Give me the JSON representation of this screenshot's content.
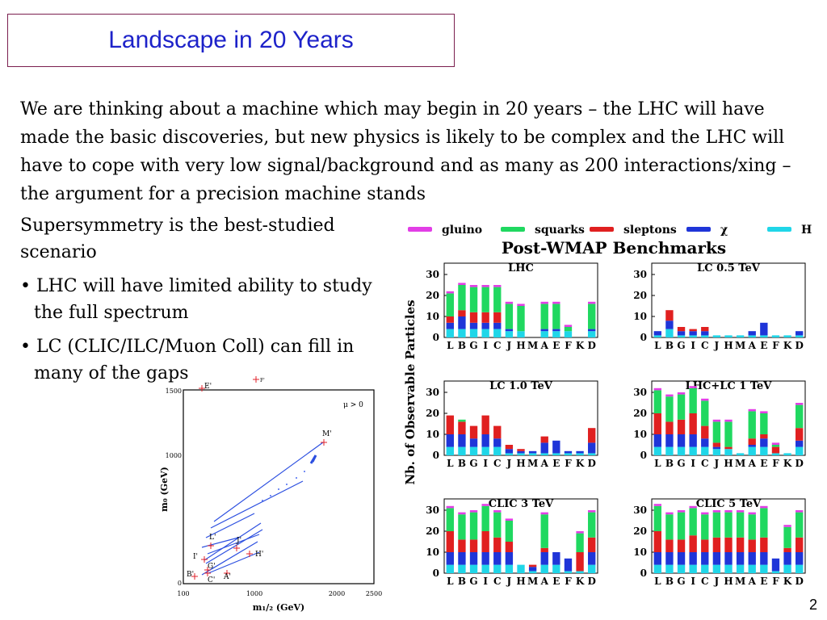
{
  "slide": {
    "title": "Landscape in 20 Years",
    "intro": "We are thinking about a machine which may begin in 20 years – the LHC will have made the basic discoveries, but new physics is likely to be complex and the LHC will have to cope with very low signal/background and as many as 200 interactions/xing – the argument for a precision machine stands",
    "susy_line1": "Supersymmetry is the best-studied",
    "susy_line2": "scenario",
    "bullet1_line1": "• LHC will have limited ability to study",
    "bullet1_line2": "the full spectrum",
    "bullet2_line1": "• LC (CLIC/ILC/Muon Coll) can fill in",
    "bullet2_line2": "many of the gaps",
    "slide_number": "2"
  },
  "legend": [
    {
      "name": "gluino",
      "color": "#e23ee6"
    },
    {
      "name": "squarks",
      "color": "#20d860"
    },
    {
      "name": "sleptons",
      "color": "#e02020"
    },
    {
      "name": "χ",
      "color": "#1f35d8"
    },
    {
      "name": "H",
      "color": "#20d6e8"
    }
  ],
  "bench_title": "Post-WMAP Benchmarks",
  "ylabel": "Nb. of Observable Particles",
  "chart_data": {
    "type": "bar",
    "stacked": true,
    "categories": [
      "L",
      "B",
      "G",
      "I",
      "C",
      "J",
      "H",
      "M",
      "A",
      "E",
      "F",
      "K",
      "D"
    ],
    "series_names": [
      "H",
      "χ",
      "sleptons",
      "squarks",
      "gluino"
    ],
    "ylim": [
      0,
      30
    ],
    "yticks": [
      0,
      10,
      20,
      30
    ],
    "panels": [
      {
        "title": "LHC",
        "H": [
          4,
          4,
          4,
          4,
          4,
          3,
          3,
          0,
          3,
          3,
          3,
          0,
          3
        ],
        "chi": [
          3,
          6,
          3,
          3,
          3,
          1,
          0,
          0,
          1,
          1,
          0,
          0,
          1
        ],
        "sleptons": [
          3,
          3,
          5,
          5,
          5,
          0,
          0,
          0,
          0,
          0,
          0,
          0,
          0
        ],
        "squarks": [
          11,
          12,
          12,
          12,
          12,
          12,
          12,
          0,
          12,
          12,
          2,
          0,
          12
        ],
        "gluino": [
          1,
          1,
          1,
          1,
          1,
          1,
          1,
          0,
          1,
          1,
          1,
          0,
          1
        ]
      },
      {
        "title": "LC 0.5 TeV",
        "H": [
          1,
          4,
          1,
          1,
          1,
          1,
          1,
          1,
          1,
          1,
          1,
          1,
          1
        ],
        "chi": [
          2,
          4,
          2,
          2,
          2,
          0,
          0,
          0,
          2,
          6,
          0,
          0,
          2
        ],
        "sleptons": [
          0,
          5,
          2,
          1,
          2,
          0,
          0,
          0,
          0,
          0,
          0,
          0,
          0
        ],
        "squarks": [
          0,
          0,
          0,
          0,
          0,
          0,
          0,
          0,
          0,
          0,
          0,
          0,
          0
        ],
        "gluino": [
          0,
          0,
          0,
          0,
          0,
          0,
          0,
          0,
          0,
          0,
          0,
          0,
          0
        ]
      },
      {
        "title": "LC 1.0 TeV",
        "H": [
          4,
          4,
          4,
          4,
          4,
          1,
          1,
          1,
          1,
          1,
          1,
          1,
          1
        ],
        "chi": [
          6,
          6,
          4,
          6,
          4,
          2,
          1,
          1,
          5,
          6,
          1,
          1,
          5
        ],
        "sleptons": [
          9,
          6,
          6,
          9,
          6,
          2,
          1,
          0,
          3,
          0,
          0,
          0,
          7
        ],
        "squarks": [
          0,
          1,
          0,
          0,
          0,
          0,
          0,
          0,
          0,
          0,
          0,
          0,
          0
        ],
        "gluino": [
          0,
          0,
          0,
          0,
          0,
          0,
          0,
          0,
          0,
          0,
          0,
          0,
          0
        ]
      },
      {
        "title": "LHC+LC 1 TeV",
        "H": [
          4,
          4,
          4,
          4,
          4,
          3,
          3,
          1,
          4,
          4,
          1,
          1,
          4
        ],
        "chi": [
          6,
          6,
          6,
          6,
          4,
          1,
          0,
          0,
          1,
          4,
          0,
          0,
          3
        ],
        "sleptons": [
          10,
          6,
          7,
          10,
          6,
          2,
          1,
          0,
          3,
          2,
          3,
          0,
          6
        ],
        "squarks": [
          11,
          12,
          12,
          12,
          12,
          10,
          12,
          0,
          13,
          10,
          1,
          0,
          11
        ],
        "gluino": [
          1,
          1,
          1,
          1,
          1,
          1,
          1,
          0,
          1,
          1,
          1,
          0,
          1
        ]
      },
      {
        "title": "CLIC 3 TeV",
        "H": [
          4,
          4,
          4,
          4,
          4,
          4,
          4,
          1,
          4,
          4,
          1,
          1,
          4
        ],
        "chi": [
          6,
          6,
          6,
          6,
          6,
          6,
          0,
          2,
          6,
          6,
          6,
          0,
          6
        ],
        "sleptons": [
          10,
          6,
          6,
          10,
          7,
          5,
          0,
          1,
          2,
          0,
          0,
          9,
          7
        ],
        "squarks": [
          11,
          12,
          13,
          12,
          12,
          10,
          0,
          0,
          16,
          0,
          0,
          9,
          12
        ],
        "gluino": [
          1,
          1,
          1,
          1,
          1,
          1,
          0,
          0,
          1,
          0,
          0,
          1,
          1
        ]
      },
      {
        "title": "CLIC 5 TeV",
        "H": [
          4,
          4,
          4,
          4,
          4,
          4,
          4,
          4,
          4,
          4,
          1,
          4,
          4
        ],
        "chi": [
          6,
          6,
          6,
          6,
          6,
          6,
          6,
          6,
          6,
          6,
          6,
          6,
          6
        ],
        "sleptons": [
          10,
          6,
          6,
          8,
          6,
          7,
          7,
          7,
          6,
          7,
          0,
          2,
          7
        ],
        "squarks": [
          12,
          12,
          13,
          13,
          12,
          12,
          12,
          12,
          12,
          14,
          0,
          10,
          12
        ],
        "gluino": [
          1,
          1,
          1,
          1,
          1,
          1,
          1,
          1,
          1,
          1,
          0,
          1,
          1
        ]
      }
    ]
  },
  "scan": {
    "ylabel": "m₀ (GeV)",
    "xlabel": "m₁/₂ (GeV)",
    "xticks": [
      "100",
      "1000",
      "2000",
      "2500"
    ],
    "yticks": [
      "1500",
      "1000",
      "0"
    ],
    "annotation": "μ > 0",
    "points": [
      "E'",
      "F'",
      "M'",
      "L'",
      "J'",
      "I'",
      "G'",
      "H'",
      "B'",
      "C'",
      "A'"
    ]
  }
}
